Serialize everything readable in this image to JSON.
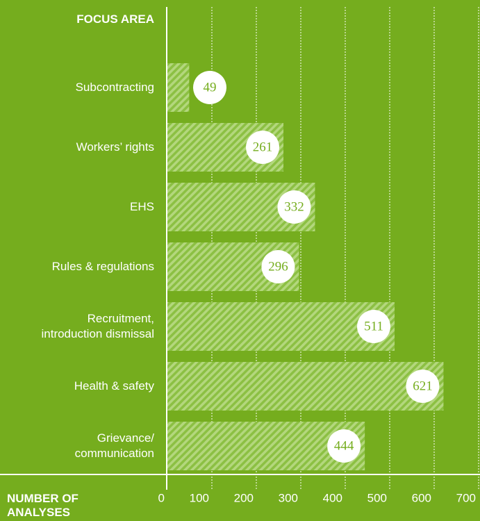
{
  "chart_data": {
    "type": "bar",
    "orientation": "horizontal",
    "y_label": "FOCUS AREA",
    "x_label": "NUMBER OF ANALYSES",
    "categories": [
      "Subcontracting",
      "Workers’ rights",
      "EHS",
      "Rules & regulations",
      "Recruitment,\nintroduction dismissal",
      "Health & safety",
      "Grievance/\ncommunication"
    ],
    "values": [
      49,
      261,
      332,
      296,
      511,
      621,
      444
    ],
    "color": "#a9d26c",
    "xlim": [
      0,
      700
    ],
    "xticks": [
      0,
      100,
      200,
      300,
      400,
      500,
      600,
      700
    ],
    "grid": true
  }
}
